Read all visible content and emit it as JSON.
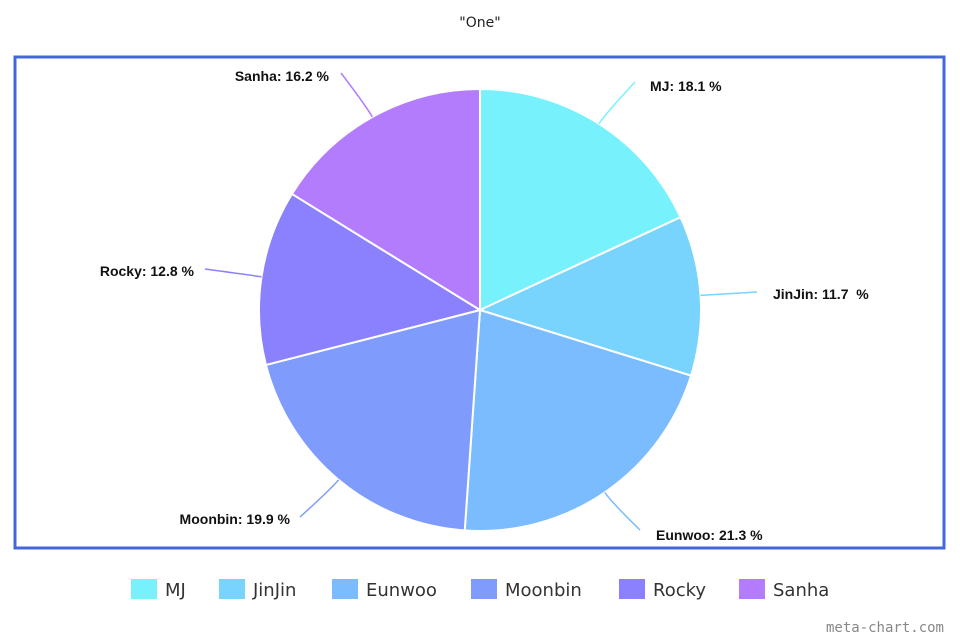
{
  "chart_data": {
    "type": "pie",
    "title": "\"One\"",
    "slices": [
      {
        "name": "MJ",
        "value": 18.1,
        "label": "MJ: 18.1 %",
        "color": "#77f2fd"
      },
      {
        "name": "JinJin",
        "value": 11.7,
        "label": "JinJin: 11.7  %",
        "color": "#78d3fd"
      },
      {
        "name": "Eunwoo",
        "value": 21.3,
        "label": "Eunwoo: 21.3 %",
        "color": "#7abcfd"
      },
      {
        "name": "Moonbin",
        "value": 19.9,
        "label": "Moonbin: 19.9 %",
        "color": "#7f9cfd"
      },
      {
        "name": "Rocky",
        "value": 12.8,
        "label": "Rocky: 12.8 %",
        "color": "#8b80fd"
      },
      {
        "name": "Sanha",
        "value": 16.2,
        "label": "Sanha: 16.2 %",
        "color": "#b37cfd"
      }
    ],
    "legend_position": "bottom",
    "border_color": "#4466dd"
  },
  "watermark": "meta-chart.com"
}
